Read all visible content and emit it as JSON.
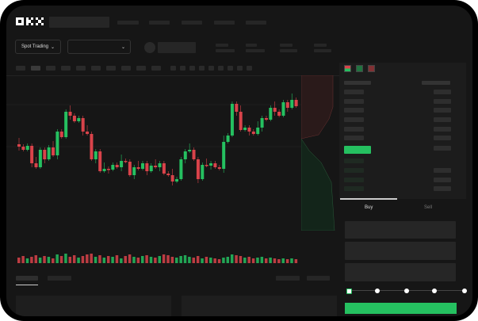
{
  "header": {
    "logo": "OKX",
    "nav_items": [
      "",
      "",
      "",
      "",
      ""
    ]
  },
  "toolbar": {
    "market_select": "Spot Trading",
    "pair_select": ""
  },
  "colors": {
    "up": "#25c060",
    "down": "#d9434a",
    "background": "#161616",
    "panel": "#1c1c1c"
  },
  "order_book": {
    "view_icons": [
      "book-both-icon",
      "book-bids-icon",
      "book-asks-icon"
    ],
    "highlight_color": "#25c060"
  },
  "trade": {
    "tabs": [
      "Buy",
      "Sell"
    ],
    "active_tab": "Buy",
    "slider_percent": 0,
    "slider_steps": [
      0,
      25,
      50,
      75,
      100
    ]
  },
  "chart_data": {
    "type": "candlestick",
    "closes": [
      56,
      52,
      57,
      35,
      30,
      52,
      40,
      55,
      45,
      75,
      68,
      100,
      95,
      88,
      92,
      75,
      72,
      40,
      50,
      25,
      28,
      27,
      33,
      30,
      38,
      37,
      20,
      30,
      28,
      35,
      25,
      32,
      30,
      35,
      22,
      20,
      12,
      15,
      40,
      50,
      52,
      40,
      15,
      33,
      32,
      35,
      30,
      28,
      62,
      70,
      110,
      100,
      77,
      80,
      75,
      72,
      80,
      92,
      90,
      105,
      100,
      95,
      112,
      105,
      115,
      107
    ],
    "volume": [
      7,
      9,
      6,
      8,
      10,
      7,
      9,
      8,
      6,
      11,
      9,
      12,
      8,
      10,
      7,
      9,
      11,
      12,
      8,
      10,
      7,
      9,
      8,
      10,
      6,
      9,
      11,
      8,
      7,
      9,
      10,
      8,
      7,
      9,
      11,
      10,
      8,
      7,
      9,
      10,
      8,
      7,
      9,
      6,
      8,
      7,
      6,
      5,
      7,
      8,
      11,
      10,
      9,
      7,
      8,
      6,
      7,
      8,
      6,
      7,
      6,
      5,
      6,
      5,
      6,
      5
    ]
  }
}
